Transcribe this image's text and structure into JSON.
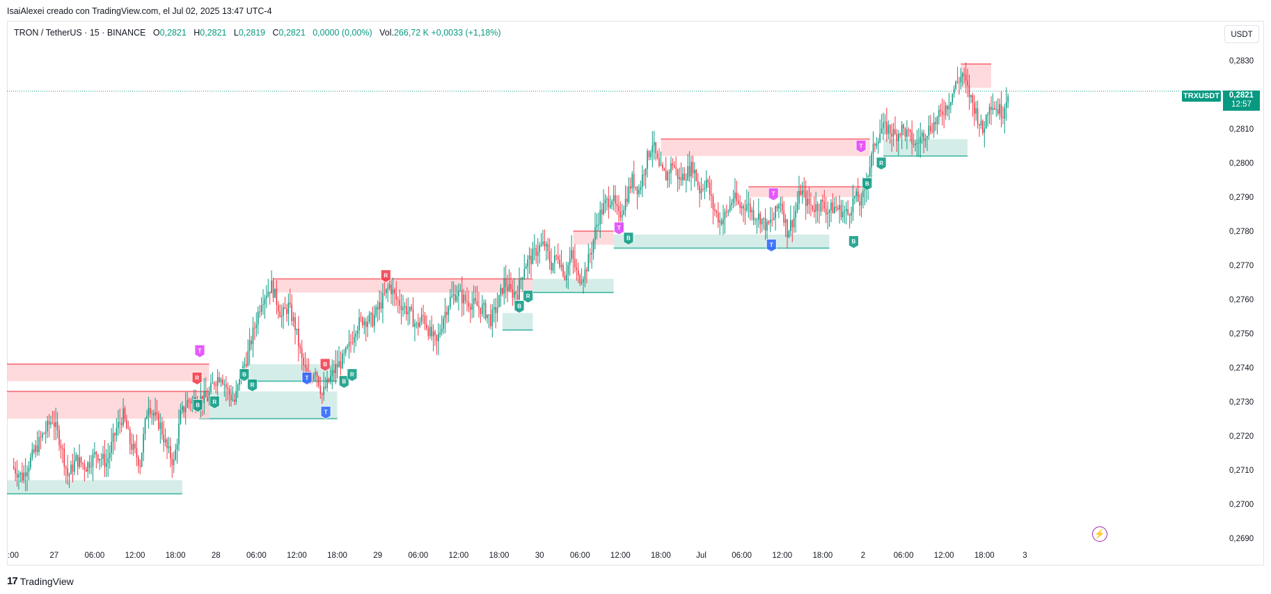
{
  "header": {
    "credit": "IsaiAlexei creado con TradingView.com, el Jul 02, 2025 13:47 UTC-4"
  },
  "legend": {
    "symbol": "TRON / TetherUS · 15 · BINANCE",
    "o_label": "O",
    "o_value": "0,2821",
    "h_label": "H",
    "h_value": "0,2821",
    "l_label": "L",
    "l_value": "0,2819",
    "c_label": "C",
    "c_value": "0,2821",
    "change": "0,0000 (0,00%)",
    "vol_label": "Vol.",
    "vol_value": "266,72 K",
    "vol_change": "+0,0033 (+1,18%)"
  },
  "toolbar": {
    "currency": "USDT"
  },
  "price_tag": {
    "symbol": "TRXUSDT",
    "price": "0,2821",
    "countdown": "12:57"
  },
  "footer": {
    "brand": "TradingView"
  },
  "icons": {
    "bolt": "lightning-icon"
  },
  "colors": {
    "up": "#089981",
    "down": "#f23645",
    "supply_zone": "#ffcdd2",
    "supply_line": "#f7525f",
    "demand_zone": "#b2dfd6",
    "demand_line": "#22ab94",
    "label_trend": "#e040fb",
    "label_t_blue": "#2962ff"
  },
  "chart_data": {
    "type": "candlestick",
    "x_tick_labels": [
      ":00",
      "27",
      "06:00",
      "12:00",
      "18:00",
      "28",
      "06:00",
      "12:00",
      "18:00",
      "29",
      "06:00",
      "12:00",
      "18:00",
      "30",
      "06:00",
      "12:00",
      "18:00",
      "Jul",
      "06:00",
      "12:00",
      "18:00",
      "2",
      "06:00",
      "12:00",
      "18:00",
      "3"
    ],
    "y_tick_labels": [
      "0,2830",
      "0,2810",
      "0,2800",
      "0,2790",
      "0,2780",
      "0,2770",
      "0,2760",
      "0,2750",
      "0,2740",
      "0,2730",
      "0,2720",
      "0,2710",
      "0,2700",
      "0,2690"
    ],
    "y_ticks": [
      0.283,
      0.281,
      0.28,
      0.279,
      0.278,
      0.277,
      0.276,
      0.275,
      0.274,
      0.273,
      0.272,
      0.271,
      0.27,
      0.269
    ],
    "ylim": [
      0.26875,
      0.28355
    ],
    "x_range_hours": [
      -1,
      173.5
    ],
    "last_price": 0.2821,
    "price_path": [
      [
        0,
        0.2711
      ],
      [
        1.5,
        0.2708
      ],
      [
        3,
        0.2714
      ],
      [
        4.5,
        0.272
      ],
      [
        6,
        0.2725
      ],
      [
        7.2,
        0.2718
      ],
      [
        8.3,
        0.2708
      ],
      [
        9.5,
        0.2713
      ],
      [
        11,
        0.2711
      ],
      [
        12.5,
        0.2715
      ],
      [
        14,
        0.2712
      ],
      [
        15.5,
        0.2722
      ],
      [
        16.5,
        0.2726
      ],
      [
        17.5,
        0.2718
      ],
      [
        19,
        0.2712
      ],
      [
        20.2,
        0.273
      ],
      [
        21,
        0.2726
      ],
      [
        22,
        0.2723
      ],
      [
        23,
        0.2716
      ],
      [
        24,
        0.2712
      ],
      [
        25,
        0.2726
      ],
      [
        26,
        0.273
      ],
      [
        27.5,
        0.2731
      ],
      [
        29,
        0.2731
      ],
      [
        30,
        0.2736
      ],
      [
        31,
        0.2738
      ],
      [
        32,
        0.2733
      ],
      [
        33,
        0.273
      ],
      [
        34,
        0.2738
      ],
      [
        35,
        0.2744
      ],
      [
        36,
        0.2752
      ],
      [
        37,
        0.276
      ],
      [
        38.5,
        0.2764
      ],
      [
        40,
        0.2755
      ],
      [
        41,
        0.2758
      ],
      [
        42,
        0.2752
      ],
      [
        43,
        0.2742
      ],
      [
        44,
        0.2736
      ],
      [
        45,
        0.274
      ],
      [
        46,
        0.2732
      ],
      [
        47,
        0.2736
      ],
      [
        48,
        0.274
      ],
      [
        49,
        0.2742
      ],
      [
        50,
        0.2746
      ],
      [
        51,
        0.2752
      ],
      [
        52,
        0.2754
      ],
      [
        53.5,
        0.2754
      ],
      [
        55,
        0.276
      ],
      [
        56,
        0.2764
      ],
      [
        57,
        0.276
      ],
      [
        58,
        0.2758
      ],
      [
        59,
        0.2756
      ],
      [
        60,
        0.2752
      ],
      [
        61,
        0.2755
      ],
      [
        62,
        0.275
      ],
      [
        63,
        0.2747
      ],
      [
        64,
        0.2755
      ],
      [
        65,
        0.276
      ],
      [
        66,
        0.2762
      ],
      [
        67,
        0.276
      ],
      [
        68,
        0.2759
      ],
      [
        69,
        0.2758
      ],
      [
        70,
        0.2757
      ],
      [
        71,
        0.2754
      ],
      [
        72,
        0.2758
      ],
      [
        73,
        0.2765
      ],
      [
        74,
        0.2762
      ],
      [
        75,
        0.2762
      ],
      [
        76,
        0.277
      ],
      [
        77,
        0.2772
      ],
      [
        78,
        0.2775
      ],
      [
        79,
        0.2776
      ],
      [
        80,
        0.277
      ],
      [
        81,
        0.2773
      ],
      [
        82,
        0.2767
      ],
      [
        83,
        0.2773
      ],
      [
        84,
        0.2766
      ],
      [
        85,
        0.2768
      ],
      [
        86,
        0.2775
      ],
      [
        86.5,
        0.278
      ],
      [
        87,
        0.2784
      ],
      [
        88,
        0.2788
      ],
      [
        89,
        0.279
      ],
      [
        90,
        0.2784
      ],
      [
        91,
        0.2789
      ],
      [
        92,
        0.2795
      ],
      [
        93,
        0.2792
      ],
      [
        94,
        0.28
      ],
      [
        95,
        0.2806
      ],
      [
        96,
        0.2798
      ],
      [
        97,
        0.2796
      ],
      [
        98,
        0.28
      ],
      [
        99,
        0.2795
      ],
      [
        100,
        0.2797
      ],
      [
        101,
        0.2799
      ],
      [
        102,
        0.2792
      ],
      [
        103,
        0.2795
      ],
      [
        104,
        0.2787
      ],
      [
        105,
        0.2783
      ],
      [
        106,
        0.2785
      ],
      [
        107,
        0.279
      ],
      [
        108,
        0.2787
      ],
      [
        109,
        0.2788
      ],
      [
        110,
        0.2785
      ],
      [
        111,
        0.2784
      ],
      [
        112,
        0.2781
      ],
      [
        113,
        0.2784
      ],
      [
        114,
        0.2789
      ],
      [
        115,
        0.278
      ],
      [
        116,
        0.2784
      ],
      [
        117,
        0.2792
      ],
      [
        118,
        0.2788
      ],
      [
        119,
        0.2787
      ],
      [
        120,
        0.2788
      ],
      [
        121,
        0.2786
      ],
      [
        122,
        0.2787
      ],
      [
        123,
        0.2786
      ],
      [
        124,
        0.2785
      ],
      [
        125,
        0.279
      ],
      [
        126,
        0.2788
      ],
      [
        127,
        0.2797
      ],
      [
        128,
        0.2806
      ],
      [
        129,
        0.281
      ],
      [
        130,
        0.281
      ],
      [
        131,
        0.2808
      ],
      [
        132,
        0.281
      ],
      [
        133,
        0.2808
      ],
      [
        134,
        0.2805
      ],
      [
        135,
        0.2808
      ],
      [
        136,
        0.281
      ],
      [
        137,
        0.2812
      ],
      [
        138,
        0.2815
      ],
      [
        139,
        0.2818
      ],
      [
        140,
        0.2823
      ],
      [
        141,
        0.2826
      ],
      [
        142,
        0.282
      ],
      [
        143,
        0.2815
      ],
      [
        144,
        0.2809
      ],
      [
        145,
        0.2818
      ],
      [
        146,
        0.2816
      ],
      [
        147,
        0.2815
      ],
      [
        147.7,
        0.2821
      ]
    ],
    "supply_zones": [
      {
        "x0": -1,
        "x1": 29,
        "top": 0.2741,
        "bottom": 0.2736
      },
      {
        "x0": -1,
        "x1": 29,
        "top": 0.2733,
        "bottom": 0.2725
      },
      {
        "x0": 38.5,
        "x1": 77,
        "top": 0.2766,
        "bottom": 0.2762
      },
      {
        "x0": 83,
        "x1": 89,
        "top": 0.278,
        "bottom": 0.2776
      },
      {
        "x0": 96,
        "x1": 127,
        "top": 0.2807,
        "bottom": 0.2802
      },
      {
        "x0": 109,
        "x1": 126,
        "top": 0.2793,
        "bottom": 0.279
      },
      {
        "x0": 140.5,
        "x1": 145,
        "top": 0.2829,
        "bottom": 0.2822
      }
    ],
    "demand_zones": [
      {
        "x0": -1,
        "x1": 25,
        "top": 0.2707,
        "bottom": 0.2703
      },
      {
        "x0": 27.5,
        "x1": 48,
        "top": 0.2733,
        "bottom": 0.2725
      },
      {
        "x0": 35,
        "x1": 48,
        "top": 0.2741,
        "bottom": 0.2736
      },
      {
        "x0": 72.5,
        "x1": 77,
        "top": 0.2756,
        "bottom": 0.2751
      },
      {
        "x0": 77,
        "x1": 89,
        "top": 0.2766,
        "bottom": 0.2762
      },
      {
        "x0": 89,
        "x1": 121,
        "top": 0.2779,
        "bottom": 0.2775
      },
      {
        "x0": 129,
        "x1": 141.5,
        "top": 0.2807,
        "bottom": 0.2802
      }
    ],
    "signal_labels": [
      {
        "x": 27.2,
        "price": 0.2737,
        "text": "R",
        "kind": "sell"
      },
      {
        "x": 27.6,
        "price": 0.2745,
        "text": "T",
        "kind": "trend"
      },
      {
        "x": 27.3,
        "price": 0.2729,
        "text": "B",
        "kind": "buy"
      },
      {
        "x": 29.8,
        "price": 0.273,
        "text": "R",
        "kind": "buy"
      },
      {
        "x": 34.2,
        "price": 0.2738,
        "text": "B",
        "kind": "buy"
      },
      {
        "x": 35.4,
        "price": 0.2735,
        "text": "R",
        "kind": "buy"
      },
      {
        "x": 43.5,
        "price": 0.2737,
        "text": "T",
        "kind": "blue"
      },
      {
        "x": 46.2,
        "price": 0.2741,
        "text": "B",
        "kind": "sell"
      },
      {
        "x": 46.3,
        "price": 0.2727,
        "text": "T",
        "kind": "blue"
      },
      {
        "x": 49,
        "price": 0.2736,
        "text": "B",
        "kind": "buy"
      },
      {
        "x": 50.2,
        "price": 0.2738,
        "text": "R",
        "kind": "buy"
      },
      {
        "x": 55.2,
        "price": 0.2767,
        "text": "R",
        "kind": "sell"
      },
      {
        "x": 75,
        "price": 0.2758,
        "text": "B",
        "kind": "buy"
      },
      {
        "x": 76.3,
        "price": 0.2761,
        "text": "R",
        "kind": "buy"
      },
      {
        "x": 89.8,
        "price": 0.2781,
        "text": "T",
        "kind": "trend"
      },
      {
        "x": 91.2,
        "price": 0.2778,
        "text": "B",
        "kind": "buy"
      },
      {
        "x": 112.7,
        "price": 0.2791,
        "text": "T",
        "kind": "trend"
      },
      {
        "x": 112.4,
        "price": 0.2776,
        "text": "T",
        "kind": "blue"
      },
      {
        "x": 124.6,
        "price": 0.2777,
        "text": "B",
        "kind": "buy"
      },
      {
        "x": 125.7,
        "price": 0.2805,
        "text": "T",
        "kind": "trend"
      },
      {
        "x": 126.6,
        "price": 0.2794,
        "text": "B",
        "kind": "buy"
      },
      {
        "x": 128.7,
        "price": 0.28,
        "text": "R",
        "kind": "buy"
      }
    ]
  }
}
